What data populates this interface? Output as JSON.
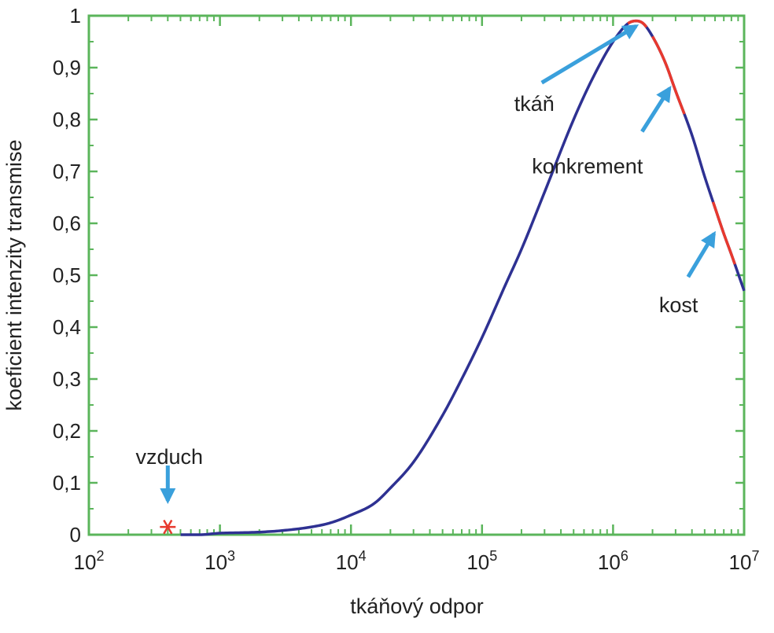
{
  "colors": {
    "frame": "#5bb55b",
    "curve": "#2e3192",
    "highlight": "#e8392e",
    "arrow": "#3aa0dc",
    "marker": "#e8392e",
    "text": "#222222"
  },
  "chart_data": {
    "type": "line",
    "x_scale": "log",
    "xlim": [
      100,
      10000000
    ],
    "ylim": [
      0,
      1
    ],
    "grid": false,
    "xlabel": "tkáňový odpor",
    "ylabel": "koeficient intenzity transmise",
    "x_ticks": [
      {
        "value": 100,
        "base": "10",
        "exp": "2"
      },
      {
        "value": 1000,
        "base": "10",
        "exp": "3"
      },
      {
        "value": 10000,
        "base": "10",
        "exp": "4"
      },
      {
        "value": 100000,
        "base": "10",
        "exp": "5"
      },
      {
        "value": 1000000,
        "base": "10",
        "exp": "6"
      },
      {
        "value": 10000000,
        "base": "10",
        "exp": "7"
      }
    ],
    "y_ticks": [
      {
        "value": 0,
        "label": "0"
      },
      {
        "value": 0.1,
        "label": "0,1"
      },
      {
        "value": 0.2,
        "label": "0,2"
      },
      {
        "value": 0.3,
        "label": "0,3"
      },
      {
        "value": 0.4,
        "label": "0,4"
      },
      {
        "value": 0.5,
        "label": "0,5"
      },
      {
        "value": 0.6,
        "label": "0,6"
      },
      {
        "value": 0.7,
        "label": "0,7"
      },
      {
        "value": 0.8,
        "label": "0,8"
      },
      {
        "value": 0.9,
        "label": "0,9"
      },
      {
        "value": 1,
        "label": "1"
      }
    ],
    "series": [
      {
        "x": [
          100,
          200,
          400,
          700,
          1000,
          1500,
          2000,
          3000,
          5000,
          7000,
          10000,
          15000,
          20000,
          30000,
          50000,
          70000,
          100000,
          150000,
          200000,
          300000,
          500000,
          700000,
          1000000,
          1300000,
          1500000,
          1700000,
          2000000,
          2500000,
          3000000,
          4000000,
          5000000,
          6000000,
          7000000,
          8000000,
          10000000
        ],
        "y": [
          0,
          0,
          0,
          0,
          0.003,
          0.004,
          0.005,
          0.008,
          0.015,
          0.023,
          0.038,
          0.06,
          0.09,
          0.14,
          0.23,
          0.3,
          0.38,
          0.48,
          0.55,
          0.66,
          0.8,
          0.88,
          0.95,
          0.985,
          0.99,
          0.985,
          0.96,
          0.91,
          0.855,
          0.77,
          0.69,
          0.63,
          0.58,
          0.54,
          0.47
        ]
      }
    ],
    "highlights": [
      {
        "x_from": 1300000,
        "x_to": 1800000
      },
      {
        "x_from": 2000000,
        "x_to": 3500000
      },
      {
        "x_from": 5800000,
        "x_to": 8500000
      }
    ],
    "markers": [
      {
        "x": 400,
        "y": 0.015,
        "symbol": "*"
      }
    ],
    "annotations": [
      {
        "label": "tkáň",
        "x": 1500000,
        "y": 0.98
      },
      {
        "label": "konkrement",
        "x": 2700000,
        "y": 0.86
      },
      {
        "label": "kost",
        "x": 5900000,
        "y": 0.58
      },
      {
        "label": "vzduch",
        "x": 400,
        "y": 0.05
      }
    ]
  }
}
